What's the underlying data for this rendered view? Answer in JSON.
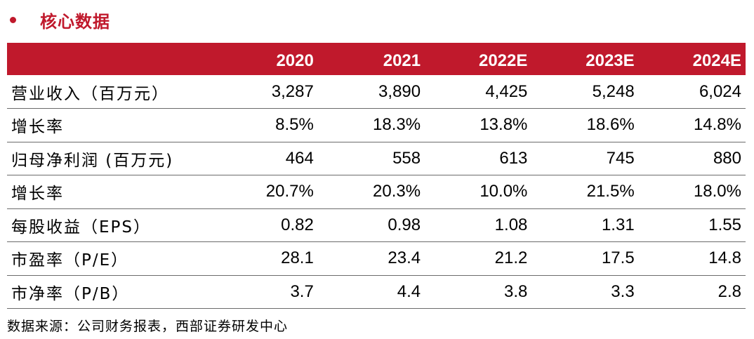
{
  "section": {
    "title": "核心数据",
    "bullet_color": "#c0192c"
  },
  "table": {
    "header_color": "#c0192c",
    "columns": [
      "",
      "2020",
      "2021",
      "2022E",
      "2023E",
      "2024E"
    ],
    "rows": [
      {
        "label": "营业收入（百万元）",
        "values": [
          "3,287",
          "3,890",
          "4,425",
          "5,248",
          "6,024"
        ]
      },
      {
        "label": "增长率",
        "values": [
          "8.5%",
          "18.3%",
          "13.8%",
          "18.6%",
          "14.8%"
        ]
      },
      {
        "label": "归母净利润 (百万元)",
        "values": [
          "464",
          "558",
          "613",
          "745",
          "880"
        ]
      },
      {
        "label": "增长率",
        "values": [
          "20.7%",
          "20.3%",
          "10.0%",
          "21.5%",
          "18.0%"
        ]
      },
      {
        "label": "每股收益（EPS）",
        "values": [
          "0.82",
          "0.98",
          "1.08",
          "1.31",
          "1.55"
        ]
      },
      {
        "label": "市盈率（P/E）",
        "values": [
          "28.1",
          "23.4",
          "21.2",
          "17.5",
          "14.8"
        ]
      },
      {
        "label": "市净率（P/B）",
        "values": [
          "3.7",
          "4.4",
          "3.8",
          "3.3",
          "2.8"
        ]
      }
    ]
  },
  "source": "数据来源：公司财务报表，西部证券研发中心"
}
